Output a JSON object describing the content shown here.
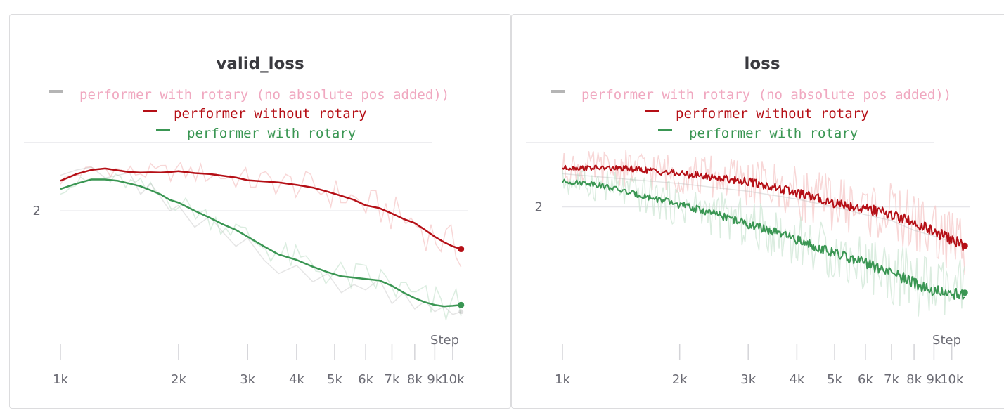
{
  "chart_data": [
    {
      "type": "line",
      "title": "valid_loss",
      "xlabel": "Step",
      "x_scale": "log",
      "xlim": [
        1000,
        11000
      ],
      "ylim": [
        1.55,
        2.25
      ],
      "x_ticks": [
        1000,
        2000,
        3000,
        4000,
        5000,
        6000,
        7000,
        8000,
        9000,
        10000
      ],
      "x_tick_labels": [
        "1k",
        "2k",
        "3k",
        "4k",
        "5k",
        "6k",
        "7k",
        "8k",
        "9k",
        "10k"
      ],
      "y_ticks": [
        2
      ],
      "y_tick_labels": [
        "2"
      ],
      "grid": true,
      "legend_position": "top-center",
      "series": [
        {
          "name": "performer with rotary (no absolute pos added))",
          "color": "#b5b5b5",
          "legend_text_color": "#f0a8c0",
          "faded": true,
          "x": [
            1000,
            1100,
            1200,
            1300,
            1400,
            1500,
            1600,
            1700,
            1800,
            1900,
            2000,
            2200,
            2400,
            2600,
            2800,
            3000,
            3300,
            3600,
            4000,
            4400,
            4800,
            5200,
            5600,
            6000,
            6500,
            7000,
            7500,
            8000,
            8500,
            9000,
            9500,
            10000,
            10500
          ],
          "values": [
            2.13,
            2.15,
            2.16,
            2.12,
            2.13,
            2.14,
            2.06,
            2.1,
            2.05,
            2.0,
            2.02,
            1.94,
            1.98,
            1.92,
            1.87,
            1.9,
            1.82,
            1.77,
            1.8,
            1.74,
            1.77,
            1.7,
            1.73,
            1.71,
            1.75,
            1.66,
            1.7,
            1.64,
            1.67,
            1.63,
            1.65,
            1.62,
            1.63
          ]
        },
        {
          "name": "performer without rotary",
          "color": "#b50f16",
          "legend_text_color": "#b50f16",
          "x": [
            1000,
            1100,
            1200,
            1300,
            1400,
            1500,
            1600,
            1700,
            1800,
            1900,
            2000,
            2200,
            2400,
            2600,
            2800,
            3000,
            3300,
            3600,
            4000,
            4400,
            4800,
            5200,
            5600,
            6000,
            6500,
            7000,
            7500,
            8000,
            8500,
            9000,
            9500,
            10000,
            10500
          ],
          "values": [
            2.11,
            2.135,
            2.15,
            2.155,
            2.148,
            2.142,
            2.14,
            2.141,
            2.14,
            2.142,
            2.145,
            2.138,
            2.135,
            2.128,
            2.122,
            2.112,
            2.108,
            2.104,
            2.095,
            2.085,
            2.07,
            2.055,
            2.04,
            2.02,
            2.01,
            1.99,
            1.97,
            1.955,
            1.93,
            1.905,
            1.885,
            1.87,
            1.86
          ]
        },
        {
          "name": "performer with rotary",
          "color": "#3a9653",
          "legend_text_color": "#3a9653",
          "x": [
            1000,
            1100,
            1200,
            1300,
            1400,
            1500,
            1600,
            1700,
            1800,
            1900,
            2000,
            2200,
            2400,
            2600,
            2800,
            3000,
            3300,
            3600,
            4000,
            4400,
            4800,
            5200,
            5600,
            6000,
            6500,
            7000,
            7500,
            8000,
            8500,
            9000,
            9500,
            10000,
            10500
          ],
          "values": [
            2.08,
            2.1,
            2.115,
            2.115,
            2.11,
            2.1,
            2.09,
            2.075,
            2.06,
            2.04,
            2.03,
            2.0,
            1.975,
            1.95,
            1.93,
            1.905,
            1.87,
            1.84,
            1.82,
            1.795,
            1.775,
            1.76,
            1.755,
            1.75,
            1.745,
            1.725,
            1.7,
            1.68,
            1.665,
            1.655,
            1.65,
            1.652,
            1.655
          ]
        }
      ]
    },
    {
      "type": "line",
      "title": "loss",
      "xlabel": "Step",
      "x_scale": "log",
      "xlim": [
        1000,
        11200
      ],
      "ylim": [
        1.35,
        2.33
      ],
      "x_ticks": [
        1000,
        2000,
        3000,
        4000,
        5000,
        6000,
        7000,
        8000,
        9000,
        10000
      ],
      "x_tick_labels": [
        "1k",
        "2k",
        "3k",
        "4k",
        "5k",
        "6k",
        "7k",
        "8k",
        "9k",
        "10k"
      ],
      "y_ticks": [
        2
      ],
      "y_tick_labels": [
        "2"
      ],
      "grid": true,
      "legend_position": "top-center",
      "series": [
        {
          "name": "performer with rotary (no absolute pos added))",
          "color": "#b5b5b5",
          "legend_text_color": "#f0a8c0",
          "faded": true,
          "x": [
            1000,
            2000,
            3000,
            4000,
            5000,
            6000,
            7000,
            8000,
            9000,
            10000,
            10800
          ],
          "values": [
            2.17,
            2.12,
            2.08,
            2.04,
            2.0,
            1.96,
            1.93,
            1.88,
            1.85,
            1.82,
            1.8
          ]
        },
        {
          "name": "performer without rotary",
          "color": "#b50f16",
          "legend_text_color": "#b50f16",
          "x": [
            1000,
            1200,
            1500,
            2000,
            2500,
            3000,
            3500,
            4000,
            5000,
            6000,
            7000,
            8000,
            9000,
            10000,
            10800
          ],
          "values": [
            2.2,
            2.2,
            2.195,
            2.17,
            2.15,
            2.13,
            2.1,
            2.07,
            2.02,
            1.99,
            1.96,
            1.92,
            1.87,
            1.83,
            1.8
          ]
        },
        {
          "name": "performer with rotary",
          "color": "#3a9653",
          "legend_text_color": "#3a9653",
          "x": [
            1000,
            1200,
            1500,
            2000,
            2500,
            3000,
            3500,
            4000,
            5000,
            6000,
            7000,
            8000,
            9000,
            10000,
            10800
          ],
          "values": [
            2.13,
            2.12,
            2.07,
            2.01,
            1.96,
            1.91,
            1.87,
            1.83,
            1.76,
            1.71,
            1.66,
            1.61,
            1.57,
            1.55,
            1.56
          ]
        }
      ]
    }
  ]
}
